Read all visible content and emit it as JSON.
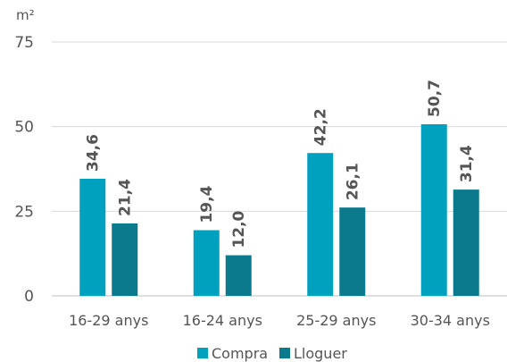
{
  "chart_data": {
    "type": "bar",
    "unit_label": "m²",
    "categories": [
      "16-29 anys",
      "16-24 anys",
      "25-29 anys",
      "30-34 anys"
    ],
    "series": [
      {
        "name": "Compra",
        "values": [
          34.6,
          19.4,
          42.2,
          50.7
        ],
        "labels": [
          "34,6",
          "19,4",
          "42,2",
          "50,7"
        ],
        "color": "#00a0bf"
      },
      {
        "name": "Lloguer",
        "values": [
          21.4,
          12.0,
          26.1,
          31.4
        ],
        "labels": [
          "21,4",
          "12,0",
          "26,1",
          "31,4"
        ],
        "color": "#0b7a8c"
      }
    ],
    "yticks": [
      0,
      25,
      50,
      75
    ],
    "ytick_labels": [
      "0",
      "25",
      "50",
      "75"
    ],
    "ylim": [
      0,
      75
    ],
    "grid": true,
    "legend_position": "bottom"
  }
}
